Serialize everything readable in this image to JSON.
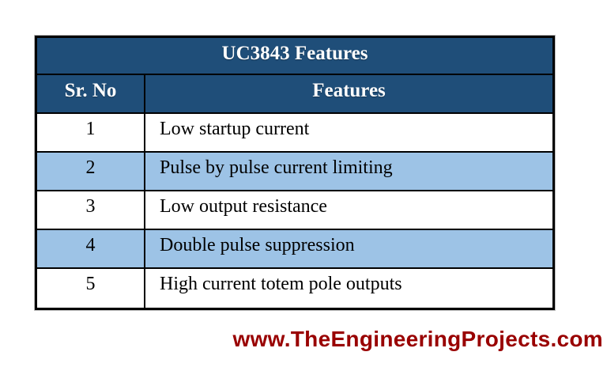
{
  "table": {
    "title": "UC3843 Features",
    "columns": [
      {
        "label": "Sr. No"
      },
      {
        "label": "Features"
      }
    ],
    "rows": [
      {
        "sr": "1",
        "feature": "Low startup current"
      },
      {
        "sr": "2",
        "feature": "Pulse by pulse current limiting"
      },
      {
        "sr": "3",
        "feature": "Low output resistance"
      },
      {
        "sr": "4",
        "feature": "Double pulse suppression"
      },
      {
        "sr": "5",
        "feature": "High current totem pole outputs"
      }
    ]
  },
  "footer": {
    "website": "www.TheEngineeringProjects.com"
  },
  "colors": {
    "header_bg": "#1F4E79",
    "alt_row_bg": "#9DC3E6",
    "border": "#000000",
    "footer_red": "#990000",
    "header_text": "#FFFFFF",
    "body_text": "#000000"
  }
}
